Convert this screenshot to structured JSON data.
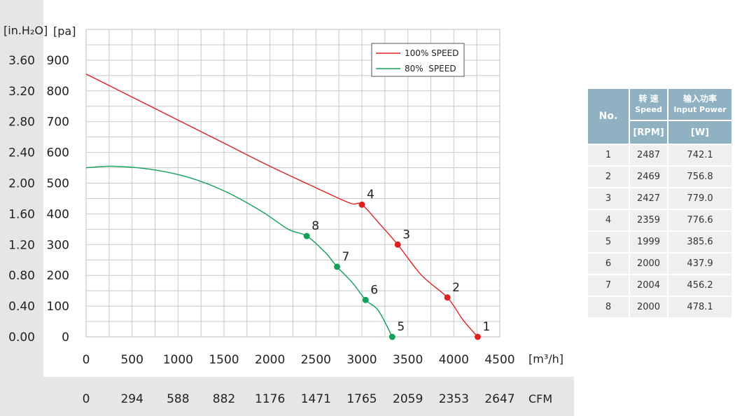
{
  "chart_data": {
    "type": "line",
    "xlabel": "[m³/h]",
    "ylabel": "[pa]",
    "ylabel_secondary": "[in.H₂O]",
    "x_secondary_label": "CFM",
    "xlim": [
      0,
      4500
    ],
    "ylim": [
      0,
      1000
    ],
    "x_ticks": [
      "0",
      "500",
      "1000",
      "1500",
      "2000",
      "2500",
      "3000",
      "3500",
      "4000",
      "4500"
    ],
    "x_tick_values": [
      0,
      500,
      1000,
      1500,
      2000,
      2500,
      3000,
      3500,
      4000,
      4500
    ],
    "y_ticks": [
      "0",
      "100",
      "200",
      "300",
      "400",
      "500",
      "600",
      "700",
      "800",
      "900"
    ],
    "y_tick_values": [
      0,
      100,
      200,
      300,
      400,
      500,
      600,
      700,
      800,
      900
    ],
    "y2_ticks": [
      "0.00",
      "0.40",
      "0.80",
      "1.20",
      "1.60",
      "2.00",
      "2.40",
      "2.80",
      "3.20",
      "3.60"
    ],
    "cfm_ticks": [
      "0",
      "294",
      "588",
      "882",
      "1176",
      "1471",
      "1765",
      "2059",
      "2353",
      "2647"
    ],
    "grid": true,
    "legend_position": "top-right",
    "series": [
      {
        "name": "100% SPEED",
        "color": "#dd2222",
        "points": [
          [
            0,
            855
          ],
          [
            500,
            780
          ],
          [
            1000,
            705
          ],
          [
            1500,
            630
          ],
          [
            2000,
            555
          ],
          [
            2500,
            485
          ],
          [
            2870,
            435
          ],
          [
            3000,
            430
          ],
          [
            3200,
            365
          ],
          [
            3390,
            300
          ],
          [
            3650,
            200
          ],
          [
            3930,
            128
          ],
          [
            4100,
            55
          ],
          [
            4260,
            0
          ]
        ],
        "markers": [
          {
            "label": "4",
            "x": 3000,
            "y": 430
          },
          {
            "label": "3",
            "x": 3390,
            "y": 300
          },
          {
            "label": "2",
            "x": 3930,
            "y": 128
          },
          {
            "label": "1",
            "x": 4260,
            "y": 0
          }
        ]
      },
      {
        "name": "80%  SPEED",
        "color": "#12a05a",
        "points": [
          [
            0,
            550
          ],
          [
            300,
            555
          ],
          [
            700,
            545
          ],
          [
            1100,
            520
          ],
          [
            1500,
            475
          ],
          [
            1900,
            410
          ],
          [
            2200,
            350
          ],
          [
            2400,
            328
          ],
          [
            2600,
            275
          ],
          [
            2730,
            228
          ],
          [
            2900,
            175
          ],
          [
            3040,
            120
          ],
          [
            3180,
            85
          ],
          [
            3330,
            0
          ]
        ],
        "markers": [
          {
            "label": "8",
            "x": 2400,
            "y": 328
          },
          {
            "label": "7",
            "x": 2730,
            "y": 228
          },
          {
            "label": "6",
            "x": 3040,
            "y": 120
          },
          {
            "label": "5",
            "x": 3330,
            "y": 0
          }
        ]
      }
    ]
  },
  "table": {
    "header": {
      "no": "No.",
      "speed_cn": "转 速",
      "speed_en": "Speed",
      "power_cn": "输入功率",
      "power_en": "Input Power",
      "speed_unit": "[RPM]",
      "power_unit": "[W]"
    },
    "rows": [
      {
        "no": "1",
        "speed": "2487",
        "power": "742.1"
      },
      {
        "no": "2",
        "speed": "2469",
        "power": "756.8"
      },
      {
        "no": "3",
        "speed": "2427",
        "power": "779.0"
      },
      {
        "no": "4",
        "speed": "2359",
        "power": "776.6"
      },
      {
        "no": "5",
        "speed": "1999",
        "power": "385.6"
      },
      {
        "no": "6",
        "speed": "2000",
        "power": "437.9"
      },
      {
        "no": "7",
        "speed": "2004",
        "power": "456.2"
      },
      {
        "no": "8",
        "speed": "2000",
        "power": "478.1"
      }
    ]
  }
}
